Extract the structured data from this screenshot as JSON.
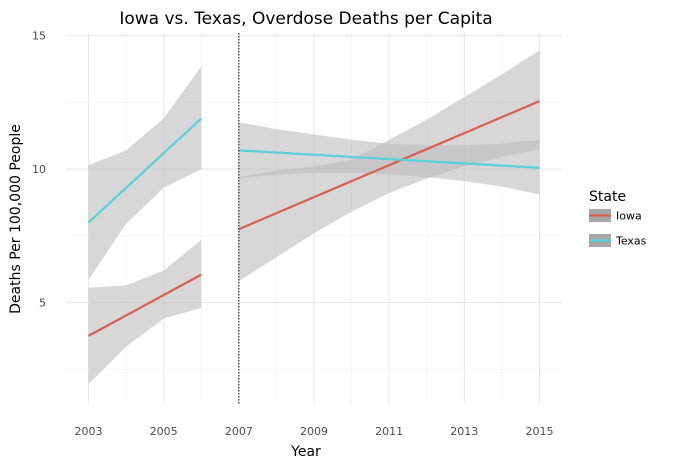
{
  "chart_data": {
    "type": "line",
    "title": "Iowa vs. Texas, Overdose Deaths per Capita",
    "xlabel": "Year",
    "ylabel": "Deaths Per 100,000 People",
    "xlim": [
      2002.4,
      2015.6
    ],
    "ylim": [
      1.2,
      15.1
    ],
    "x_ticks": [
      2003,
      2005,
      2007,
      2009,
      2011,
      2013,
      2015
    ],
    "y_ticks": [
      5,
      10,
      15
    ],
    "grid": true,
    "legend": {
      "title": "State",
      "placement": "right",
      "entries": [
        "Iowa",
        "Texas"
      ]
    },
    "vline_x": 2007,
    "colors": {
      "Iowa": "#d9604f",
      "Texas": "#57d1dc",
      "ribbon": "#bdbdbd"
    },
    "series": [
      {
        "name": "Iowa",
        "segment": "before",
        "x": [
          2003,
          2006
        ],
        "y": [
          3.75,
          6.05
        ],
        "ci_x": [
          2003,
          2004,
          2005,
          2006
        ],
        "ci_lower": [
          1.95,
          3.35,
          4.4,
          4.8
        ],
        "ci_upper": [
          5.55,
          5.65,
          6.2,
          7.35
        ]
      },
      {
        "name": "Texas",
        "segment": "before",
        "x": [
          2003,
          2006
        ],
        "y": [
          8.0,
          11.9
        ],
        "ci_x": [
          2003,
          2004,
          2005,
          2006
        ],
        "ci_lower": [
          5.85,
          7.95,
          9.3,
          10.0
        ],
        "ci_upper": [
          10.15,
          10.7,
          11.9,
          13.85
        ]
      },
      {
        "name": "Iowa",
        "segment": "after",
        "x": [
          2007,
          2015
        ],
        "y": [
          7.75,
          12.55
        ],
        "ci_x": [
          2007,
          2008,
          2009,
          2010,
          2011,
          2012,
          2013,
          2014,
          2015
        ],
        "ci_lower": [
          5.8,
          6.7,
          7.6,
          8.4,
          9.1,
          9.65,
          10.1,
          10.45,
          10.75
        ],
        "ci_upper": [
          9.7,
          9.95,
          10.1,
          10.35,
          11.1,
          11.85,
          12.7,
          13.55,
          14.45
        ]
      },
      {
        "name": "Texas",
        "segment": "after",
        "x": [
          2007,
          2015
        ],
        "y": [
          10.7,
          10.05
        ],
        "ci_x": [
          2007,
          2008,
          2009,
          2010,
          2011,
          2012,
          2013,
          2014,
          2015
        ],
        "ci_lower": [
          9.65,
          9.8,
          9.85,
          9.85,
          9.8,
          9.7,
          9.55,
          9.35,
          9.05
        ],
        "ci_upper": [
          11.75,
          11.5,
          11.3,
          11.1,
          10.95,
          10.9,
          10.9,
          10.95,
          11.1
        ]
      }
    ]
  }
}
